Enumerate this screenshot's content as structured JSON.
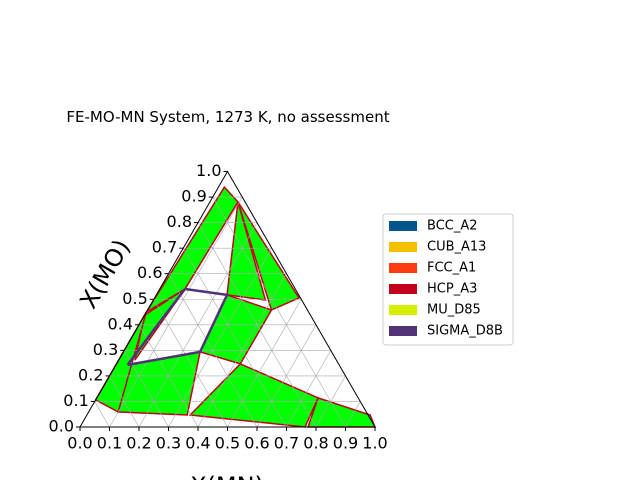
{
  "chart_data": {
    "type": "ternary",
    "title": "FE-MO-MN System, 1273 K, no assessment",
    "xlabel": "X(MN)",
    "ylabel": "X(MO)",
    "xlim": [
      0,
      1
    ],
    "ylim": [
      0,
      1
    ],
    "xticks": [
      {
        "value": 0,
        "label": "0.0"
      },
      0.1,
      0.2,
      0.3,
      0.4,
      0.5,
      0.6,
      0.7,
      0.8,
      0.9,
      {
        "value": 1,
        "label": "1.0"
      }
    ],
    "yticks": [
      {
        "value": 0,
        "label": "0.0"
      },
      0.1,
      0.2,
      0.3,
      0.4,
      0.5,
      0.6,
      0.7,
      0.8,
      0.9,
      {
        "value": 1,
        "label": "1.0"
      }
    ],
    "grid": true,
    "region_color": "#00ff00",
    "region_edge_color": "#c3001c",
    "regions": [
      {
        "x": [
          0.35,
          0.42,
          0.75,
          0.763
        ],
        "y": [
          0.047,
          0.247,
          0.114,
          0
        ]
      },
      {
        "x": [
          0.75,
          0.96,
          1,
          0.773
        ],
        "y": [
          0.114,
          0.047,
          0,
          0
        ]
      },
      {
        "x": [
          0.1,
          0.04,
          0.26,
          0.34
        ],
        "y": [
          0.059,
          0.243,
          0.294,
          0.047
        ]
      },
      {
        "x": [
          0.26,
          0.24,
          0.42,
          0.42
        ],
        "y": [
          0.294,
          0.517,
          0.458,
          0.247
        ]
      },
      {
        "x": [
          0,
          0.086,
          0.055
        ],
        "y": [
          0.438,
          0.54,
          0.262
        ]
      },
      {
        "x": [
          0.095,
          0.49,
          0.42
        ],
        "y": [
          0.881,
          0.505,
          0.458
        ]
      },
      {
        "x": [
          0,
          0.02,
          0.095,
          0.086
        ],
        "y": [
          0.45,
          0.939,
          0.881,
          0.54
        ]
      },
      {
        "x": [
          0.095,
          0.24,
          0.38
        ],
        "y": [
          0.881,
          0.517,
          0.497
        ]
      },
      {
        "x": [
          0,
          0,
          0.1
        ],
        "y": [
          0.106,
          0.45,
          0.059
        ]
      }
    ],
    "boundaries": [
      {
        "color": "#4f3376",
        "x": [
          0.086,
          0.24,
          0.26,
          0.04
        ],
        "y": [
          0.54,
          0.517,
          0.294,
          0.243
        ]
      },
      {
        "color": "#4f3376",
        "x": [
          0.086,
          0.06,
          0.04
        ],
        "y": [
          0.54,
          0.38,
          0.243
        ]
      }
    ],
    "legend": "right",
    "series": [
      {
        "name": "BCC_A2",
        "color": "#00558a"
      },
      {
        "name": "CUB_A13",
        "color": "#f5c000"
      },
      {
        "name": "FCC_A1",
        "color": "#ff3b14"
      },
      {
        "name": "HCP_A3",
        "color": "#c3001c"
      },
      {
        "name": "MU_D85",
        "color": "#d4f000"
      },
      {
        "name": "SIGMA_D8B",
        "color": "#4f3376"
      }
    ]
  }
}
